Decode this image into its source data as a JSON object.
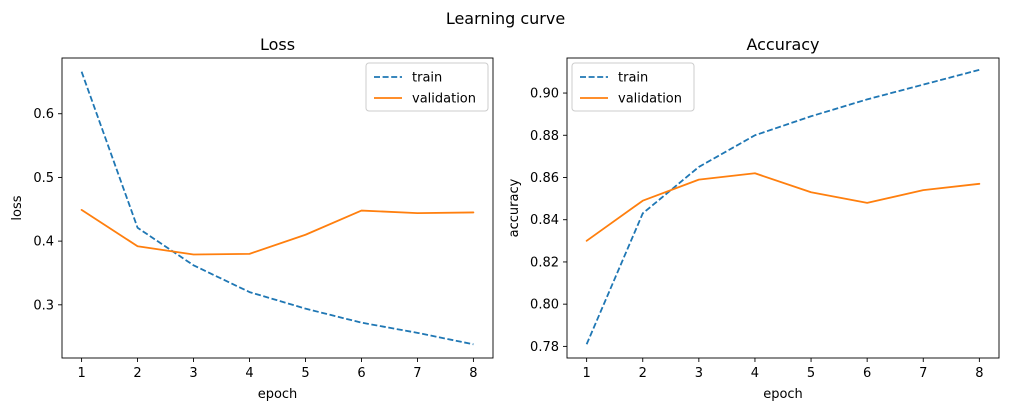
{
  "figure": {
    "suptitle": "Learning curve"
  },
  "chart_data": [
    {
      "type": "line",
      "title": "Loss",
      "xlabel": "epoch",
      "ylabel": "loss",
      "xlim": [
        0.65,
        8.35
      ],
      "ylim": [
        0.2165,
        0.6875
      ],
      "xticks": [
        1,
        2,
        3,
        4,
        5,
        6,
        7,
        8
      ],
      "yticks": [
        0.3,
        0.4,
        0.5,
        0.6
      ],
      "ytick_labels": [
        "0.3",
        "0.4",
        "0.5",
        "0.6"
      ],
      "grid": false,
      "legend_position": "top-right",
      "x": [
        1,
        2,
        3,
        4,
        5,
        6,
        7,
        8
      ],
      "series": [
        {
          "name": "train",
          "color": "#1f77b4",
          "dash": true,
          "values": [
            0.666,
            0.421,
            0.362,
            0.32,
            0.294,
            0.272,
            0.256,
            0.238
          ]
        },
        {
          "name": "validation",
          "color": "#ff7f0e",
          "dash": false,
          "values": [
            0.449,
            0.392,
            0.379,
            0.38,
            0.41,
            0.448,
            0.444,
            0.445
          ]
        }
      ]
    },
    {
      "type": "line",
      "title": "Accuracy",
      "xlabel": "epoch",
      "ylabel": "accuracy",
      "xlim": [
        0.65,
        8.35
      ],
      "ylim": [
        0.7745,
        0.9166
      ],
      "xticks": [
        1,
        2,
        3,
        4,
        5,
        6,
        7,
        8
      ],
      "yticks": [
        0.78,
        0.8,
        0.82,
        0.84,
        0.86,
        0.88,
        0.9
      ],
      "ytick_labels": [
        "0.78",
        "0.80",
        "0.82",
        "0.84",
        "0.86",
        "0.88",
        "0.90"
      ],
      "grid": false,
      "legend_position": "top-left",
      "x": [
        1,
        2,
        3,
        4,
        5,
        6,
        7,
        8
      ],
      "series": [
        {
          "name": "train",
          "color": "#1f77b4",
          "dash": true,
          "values": [
            0.781,
            0.843,
            0.865,
            0.88,
            0.889,
            0.897,
            0.904,
            0.911
          ]
        },
        {
          "name": "validation",
          "color": "#ff7f0e",
          "dash": false,
          "values": [
            0.83,
            0.849,
            0.859,
            0.862,
            0.853,
            0.848,
            0.854,
            0.857
          ]
        }
      ]
    }
  ]
}
